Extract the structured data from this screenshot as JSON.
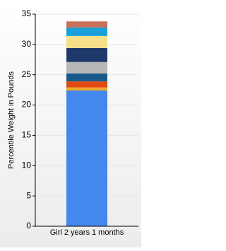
{
  "chart_data": {
    "type": "stacked-bar",
    "y_label": "Percentile Weight in Pounds",
    "categories": [
      "Girl 2 years 1 months"
    ],
    "series": [
      {
        "color": "#4488ee",
        "values": [
          22.4
        ]
      },
      {
        "color": "#f0a830",
        "values": [
          0.5
        ]
      },
      {
        "color": "#e04a10",
        "values": [
          1.0
        ]
      },
      {
        "color": "#1a5a8a",
        "values": [
          1.3
        ]
      },
      {
        "color": "#b8b8b8",
        "values": [
          1.9
        ]
      },
      {
        "color": "#1f3a6a",
        "values": [
          2.3
        ]
      },
      {
        "color": "#f8e08a",
        "values": [
          2.0
        ]
      },
      {
        "color": "#1aa0d8",
        "values": [
          1.4
        ]
      },
      {
        "color": "#c8705a",
        "values": [
          1.0
        ]
      }
    ],
    "ylim": [
      0,
      35
    ],
    "yticks": [
      0,
      5,
      10,
      15,
      20,
      25,
      30,
      35
    ],
    "grid": true
  }
}
